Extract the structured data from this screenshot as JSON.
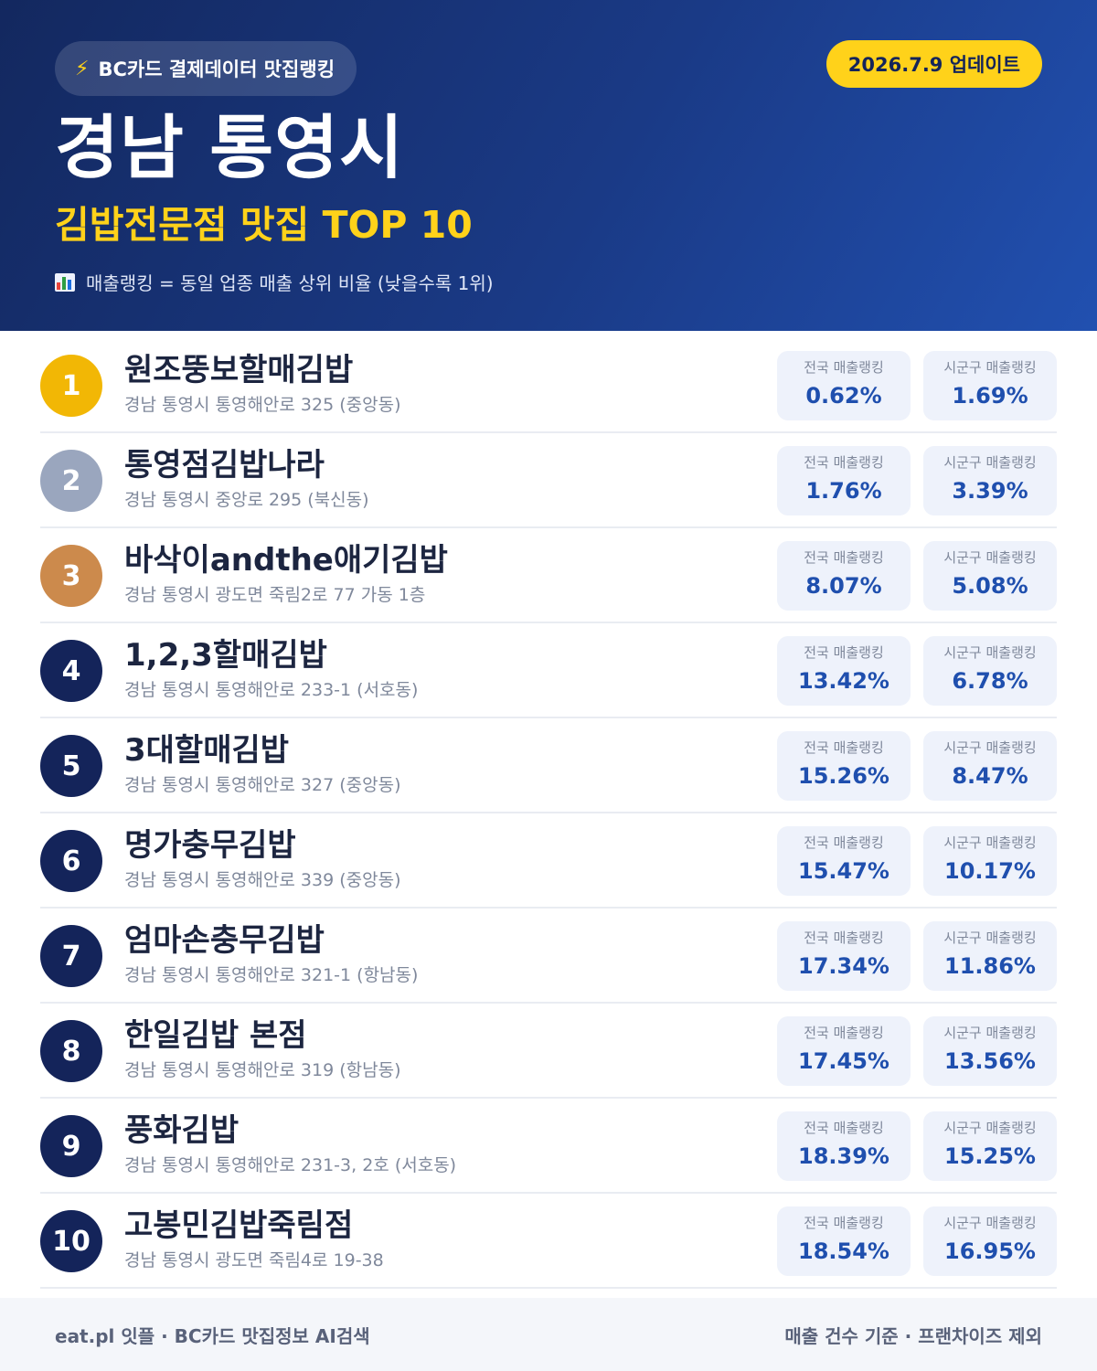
{
  "header": {
    "badge_icon": "lightning-icon",
    "badge_label": "BC카드 결제데이터 맛집랭킹",
    "date_label": "2026.7.9 업데이트",
    "title": "경남 통영시",
    "subtitle": "김밥전문점 맛집 TOP 10",
    "note_icon": "bar-chart-icon",
    "note": "매출랭킹 = 동일 업종 매출 상위 비율 (낮을수록 1위)"
  },
  "colors": {
    "header_bg": "#13285f",
    "accent_yellow": "#ffd21a",
    "rank_gold": "#f2b705",
    "rank_silver": "#9aa6be",
    "rank_bronze": "#cc8a4c",
    "rank_default": "#14245a",
    "value_blue": "#1f4fae"
  },
  "stat_labels": {
    "national": "전국 매출랭킹",
    "district": "시군구 매출랭킹"
  },
  "restaurants": [
    {
      "rank": "1",
      "name": "원조뚱보할매김밥",
      "address": "경남 통영시 통영해안로 325 (중앙동)",
      "national": "0.62%",
      "district": "1.69%",
      "medal": "gold"
    },
    {
      "rank": "2",
      "name": "통영점김밥나라",
      "address": "경남 통영시 중앙로 295 (북신동)",
      "national": "1.76%",
      "district": "3.39%",
      "medal": "silver"
    },
    {
      "rank": "3",
      "name": "바삭이andthe애기김밥",
      "address": "경남 통영시 광도면 죽림2로 77 가동 1층",
      "national": "8.07%",
      "district": "5.08%",
      "medal": "bronze"
    },
    {
      "rank": "4",
      "name": "1,2,3할매김밥",
      "address": "경남 통영시 통영해안로 233-1 (서호동)",
      "national": "13.42%",
      "district": "6.78%",
      "medal": "none"
    },
    {
      "rank": "5",
      "name": "3대할매김밥",
      "address": "경남 통영시 통영해안로 327 (중앙동)",
      "national": "15.26%",
      "district": "8.47%",
      "medal": "none"
    },
    {
      "rank": "6",
      "name": "명가충무김밥",
      "address": "경남 통영시 통영해안로 339 (중앙동)",
      "national": "15.47%",
      "district": "10.17%",
      "medal": "none"
    },
    {
      "rank": "7",
      "name": "엄마손충무김밥",
      "address": "경남 통영시 통영해안로 321-1 (항남동)",
      "national": "17.34%",
      "district": "11.86%",
      "medal": "none"
    },
    {
      "rank": "8",
      "name": "한일김밥 본점",
      "address": "경남 통영시 통영해안로 319 (항남동)",
      "national": "17.45%",
      "district": "13.56%",
      "medal": "none"
    },
    {
      "rank": "9",
      "name": "풍화김밥",
      "address": "경남 통영시 통영해안로 231-3, 2호 (서호동)",
      "national": "18.39%",
      "district": "15.25%",
      "medal": "none"
    },
    {
      "rank": "10",
      "name": "고봉민김밥죽림점",
      "address": "경남 통영시 광도면 죽림4로 19-38",
      "national": "18.54%",
      "district": "16.95%",
      "medal": "none"
    }
  ],
  "footer": {
    "left": "eat.pl 잇플 · BC카드 맛집정보 AI검색",
    "right": "매출 건수 기준 · 프랜차이즈 제외"
  }
}
